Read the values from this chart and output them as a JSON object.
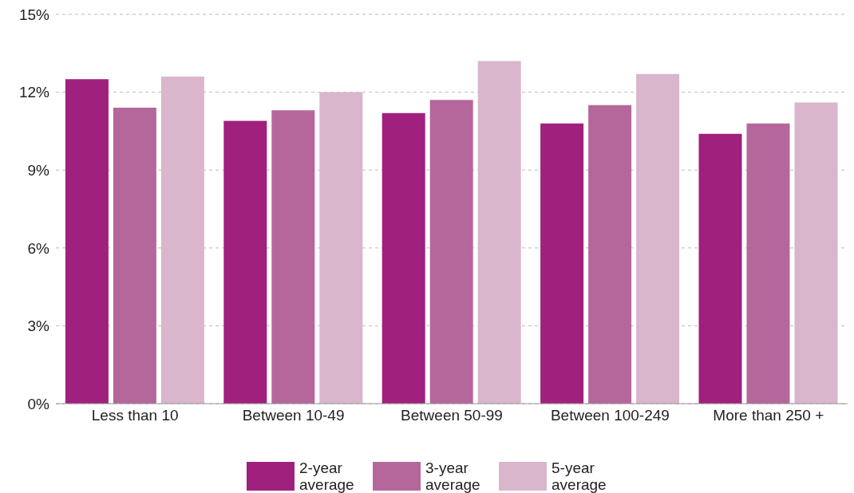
{
  "chart_data": {
    "type": "bar",
    "categories": [
      "Less than 10",
      "Between 10-49",
      "Between 50-99",
      "Between 100-249",
      "More than 250 +"
    ],
    "series": [
      {
        "name": "2-year average",
        "color": "#a0207d",
        "values": [
          12.5,
          10.9,
          11.2,
          10.8,
          10.4
        ]
      },
      {
        "name": "3-year average",
        "color": "#b5679b",
        "values": [
          11.4,
          11.3,
          11.7,
          11.5,
          10.8
        ]
      },
      {
        "name": "5-year average",
        "color": "#d9b6cc",
        "values": [
          12.6,
          12.0,
          13.2,
          12.7,
          11.6
        ]
      }
    ],
    "ylim": [
      0,
      15
    ],
    "yticks": [
      {
        "value": 0,
        "label": "0%"
      },
      {
        "value": 3,
        "label": "3%"
      },
      {
        "value": 6,
        "label": "6%"
      },
      {
        "value": 9,
        "label": "9%"
      },
      {
        "value": 12,
        "label": "12%"
      },
      {
        "value": 15,
        "label": "15%"
      }
    ],
    "grid": "y",
    "legend": "bottom"
  }
}
